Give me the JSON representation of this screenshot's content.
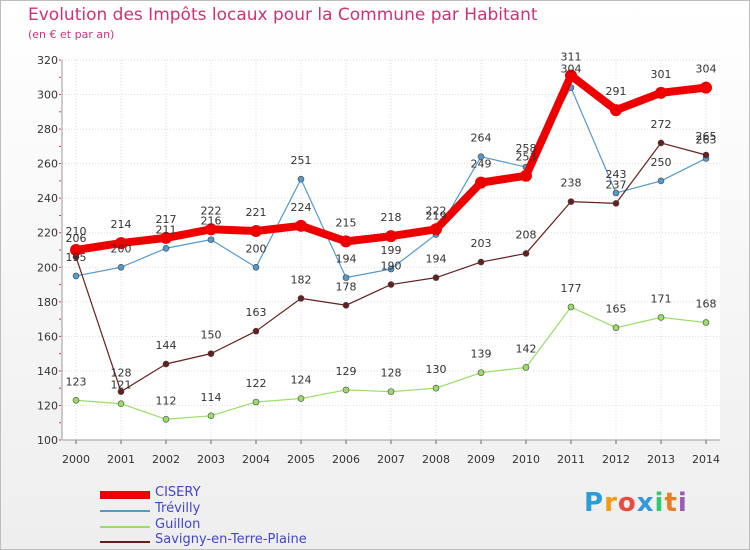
{
  "title": "Evolution des Impôts locaux pour la Commune par Habitant",
  "subtitle": "(en € et par an)",
  "logo": {
    "text": "Proxiti",
    "letters": [
      "P",
      "r",
      "o",
      "x",
      "i",
      "t",
      "i"
    ],
    "colors": [
      "#2a9fd6",
      "#f39c12",
      "#e74c3c",
      "#3498db",
      "#2ecc71",
      "#e67e22",
      "#9b59b6"
    ]
  },
  "chart_data": {
    "type": "line",
    "title": "Evolution des Impôts locaux pour la Commune par Habitant",
    "subtitle": "(en € et par an)",
    "xlabel": "",
    "ylabel": "",
    "ylim": [
      100,
      320
    ],
    "yticks": [
      100,
      120,
      140,
      160,
      180,
      200,
      220,
      240,
      260,
      280,
      300,
      320
    ],
    "categories": [
      "2000",
      "2001",
      "2002",
      "2003",
      "2004",
      "2005",
      "2006",
      "2007",
      "2008",
      "2009",
      "2010",
      "2011",
      "2012",
      "2013",
      "2014"
    ],
    "series": [
      {
        "name": "CISERY",
        "color": "#ee0000",
        "values": [
          210,
          214,
          217,
          222,
          221,
          224,
          215,
          218,
          222,
          249,
          253,
          311,
          291,
          301,
          304
        ]
      },
      {
        "name": "Trévilly",
        "color": "#5599cc",
        "values": [
          195,
          200,
          211,
          216,
          200,
          251,
          194,
          199,
          219,
          264,
          258,
          304,
          243,
          250,
          263
        ]
      },
      {
        "name": "Guillon",
        "color": "#99dd66",
        "values": [
          123,
          121,
          112,
          114,
          122,
          124,
          129,
          128,
          130,
          139,
          142,
          177,
          165,
          171,
          168
        ]
      },
      {
        "name": "Savigny-en-Terre-Plaine",
        "color": "#661f1f",
        "values": [
          206,
          128,
          144,
          150,
          163,
          182,
          178,
          190,
          194,
          203,
          208,
          238,
          237,
          272,
          265
        ]
      }
    ]
  }
}
